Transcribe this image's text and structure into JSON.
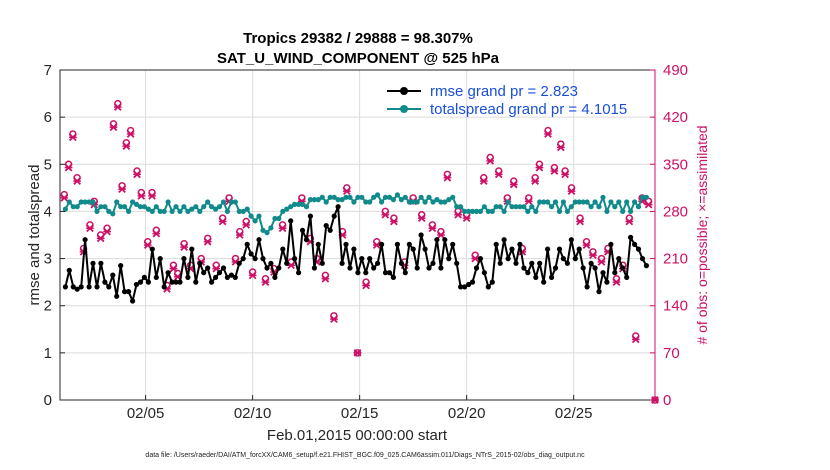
{
  "chart_data": {
    "type": "line",
    "title": "Tropics 29382 / 29888 = 98.307%",
    "subtitle": "SAT_U_WIND_COMPONENT @ 525 hPa",
    "xlabel": "Feb.01,2015 00:00:00 start",
    "ylabel": "rmse and totalspread",
    "ylabel_right": "# of obs: o=possible; ×=assimilated",
    "footnote": "data file: /Users/raeder/DAI/ATM_forcXX/CAM6_setup/f.e21.FHIST_BGC.f09_025.CAM6assim.011/Diags_NTrS_2015-02/obs_diag_output.nc",
    "xlim": [
      1,
      28.8
    ],
    "ylim": [
      0,
      7
    ],
    "ylim_right": [
      0,
      490
    ],
    "x_ticks": [
      5,
      10,
      15,
      20,
      25
    ],
    "x_tick_labels": [
      "02/05",
      "02/10",
      "02/15",
      "02/20",
      "02/25"
    ],
    "y_ticks": [
      "0",
      "1",
      "2",
      "3",
      "4",
      "5",
      "6",
      "7"
    ],
    "y_ticks_right": [
      "0",
      "70",
      "140",
      "210",
      "280",
      "350",
      "420",
      "490"
    ],
    "grid": true,
    "legend_position": "top-right",
    "colors": {
      "rmse": "#000000",
      "spread": "#108a8a",
      "obs": "#cc1166",
      "legend_text": "#1a4fd6"
    },
    "series": [
      {
        "name": "rmse grand pr = 2.823",
        "values": [
          2.4,
          2.75,
          2.4,
          2.35,
          2.4,
          3.4,
          2.4,
          2.9,
          2.4,
          2.9,
          2.5,
          2.4,
          2.65,
          2.2,
          2.85,
          2.3,
          2.3,
          2.1,
          2.45,
          2.5,
          2.6,
          2.5,
          3.2,
          2.6,
          3.0,
          2.4,
          2.7,
          2.5,
          2.5,
          2.5,
          3.0,
          2.6,
          3.2,
          2.5,
          2.9,
          2.7,
          2.8,
          2.5,
          2.6,
          2.7,
          2.8,
          2.6,
          2.65,
          2.6,
          2.9,
          3.0,
          3.3,
          3.1,
          3.0,
          3.4,
          3.0,
          2.8,
          2.9,
          2.6,
          2.8,
          3.2,
          2.9,
          3.8,
          3.0,
          2.7,
          3.6,
          3.4,
          3.9,
          2.8,
          3.3,
          2.9,
          3.7,
          3.6,
          3.9,
          4.1,
          2.9,
          3.3,
          2.8,
          3.2,
          2.7,
          3.0,
          2.7,
          3.0,
          2.8,
          2.9,
          3.3,
          2.7,
          2.7,
          2.6,
          3.3,
          2.9,
          2.7,
          3.3,
          3.2,
          2.8,
          3.5,
          3.2,
          2.8,
          2.9,
          3.4,
          2.8,
          3.4,
          3.0,
          3.3,
          2.9,
          2.4,
          2.4,
          2.45,
          2.5,
          2.8,
          3.0,
          2.7,
          2.4,
          2.5,
          3.3,
          2.9,
          3.4,
          3.0,
          3.2,
          2.9,
          3.3,
          2.8,
          2.7,
          2.9,
          2.6,
          2.9,
          2.5,
          3.2,
          2.6,
          2.8,
          3.2,
          3.0,
          2.9,
          3.4,
          3.0,
          3.2,
          2.8,
          2.4,
          2.9,
          2.8,
          2.3,
          2.7,
          2.5,
          3.3,
          2.7,
          3.0,
          2.8,
          2.6,
          3.45,
          3.3,
          3.2,
          3.0,
          2.85
        ]
      },
      {
        "name": "totalspread grand pr = 4.1015",
        "values": [
          4.05,
          4.2,
          4.1,
          4.1,
          4.2,
          4.2,
          4.2,
          4.2,
          4.0,
          4.1,
          4.1,
          4.0,
          3.95,
          4.2,
          4.1,
          4.1,
          4.0,
          4.2,
          4.15,
          4.1,
          4.1,
          4.05,
          4.0,
          4.1,
          4.0,
          4.0,
          4.2,
          4.0,
          4.1,
          4.0,
          4.1,
          4.0,
          4.05,
          4.1,
          4.0,
          4.1,
          4.2,
          4.1,
          4.05,
          4.1,
          4.2,
          4.0,
          4.2,
          4.2,
          4.0,
          4.0,
          4.05,
          3.9,
          3.8,
          3.9,
          3.6,
          3.55,
          3.65,
          3.85,
          3.85,
          4.0,
          4.05,
          4.1,
          4.15,
          4.15,
          4.15,
          4.1,
          4.25,
          4.25,
          4.25,
          4.3,
          4.2,
          4.3,
          4.3,
          4.25,
          4.25,
          4.3,
          4.3,
          4.2,
          4.3,
          4.3,
          4.2,
          4.2,
          4.3,
          4.35,
          4.2,
          4.3,
          4.3,
          4.25,
          4.35,
          4.25,
          4.3,
          4.2,
          4.2,
          4.2,
          4.3,
          4.2,
          4.3,
          4.2,
          4.25,
          4.2,
          4.2,
          4.25,
          4.3,
          4.1,
          4.1,
          4.0,
          4.0,
          4.0,
          4.0,
          4.0,
          4.1,
          4.0,
          4.0,
          4.1,
          4.1,
          4.0,
          4.2,
          4.1,
          4.1,
          4.1,
          4.1,
          4.0,
          4.1,
          4.0,
          4.2,
          4.2,
          4.2,
          4.1,
          4.2,
          4.0,
          4.2,
          4.0,
          4.1,
          4.2,
          4.2,
          4.2,
          4.2,
          4.1,
          4.2,
          4.1,
          4.3,
          4.0,
          4.2,
          4.1,
          4.2,
          4.0,
          4.2,
          4.0,
          4.2,
          4.1,
          4.3,
          4.3
        ]
      }
    ],
    "obs_possible": [
      {
        "x": 1.2,
        "y": 305
      },
      {
        "x": 1.4,
        "y": 350
      },
      {
        "x": 1.6,
        "y": 395
      },
      {
        "x": 1.8,
        "y": 330
      },
      {
        "x": 2.1,
        "y": 225
      },
      {
        "x": 2.4,
        "y": 260
      },
      {
        "x": 2.6,
        "y": 295
      },
      {
        "x": 2.9,
        "y": 245
      },
      {
        "x": 3.2,
        "y": 255
      },
      {
        "x": 3.5,
        "y": 410
      },
      {
        "x": 3.7,
        "y": 440
      },
      {
        "x": 3.9,
        "y": 318
      },
      {
        "x": 4.1,
        "y": 382
      },
      {
        "x": 4.3,
        "y": 400
      },
      {
        "x": 4.6,
        "y": 340
      },
      {
        "x": 4.8,
        "y": 308
      },
      {
        "x": 5.1,
        "y": 235
      },
      {
        "x": 5.3,
        "y": 308
      },
      {
        "x": 5.5,
        "y": 252
      },
      {
        "x": 6.0,
        "y": 170
      },
      {
        "x": 6.3,
        "y": 200
      },
      {
        "x": 6.5,
        "y": 188
      },
      {
        "x": 6.8,
        "y": 232
      },
      {
        "x": 7.1,
        "y": 200
      },
      {
        "x": 7.6,
        "y": 210
      },
      {
        "x": 7.9,
        "y": 240
      },
      {
        "x": 8.3,
        "y": 200
      },
      {
        "x": 8.6,
        "y": 270
      },
      {
        "x": 8.9,
        "y": 300
      },
      {
        "x": 9.2,
        "y": 210
      },
      {
        "x": 9.4,
        "y": 250
      },
      {
        "x": 9.7,
        "y": 265
      },
      {
        "x": 10.0,
        "y": 190
      },
      {
        "x": 10.6,
        "y": 180
      },
      {
        "x": 11.0,
        "y": 195
      },
      {
        "x": 11.4,
        "y": 260
      },
      {
        "x": 11.8,
        "y": 205
      },
      {
        "x": 12.3,
        "y": 300
      },
      {
        "x": 12.7,
        "y": 240
      },
      {
        "x": 13.0,
        "y": 210
      },
      {
        "x": 13.4,
        "y": 185
      },
      {
        "x": 13.8,
        "y": 125
      },
      {
        "x": 14.2,
        "y": 250
      },
      {
        "x": 14.4,
        "y": 315
      },
      {
        "x": 14.9,
        "y": 70
      },
      {
        "x": 15.3,
        "y": 175
      },
      {
        "x": 15.8,
        "y": 235
      },
      {
        "x": 16.2,
        "y": 280
      },
      {
        "x": 16.6,
        "y": 270
      },
      {
        "x": 17.1,
        "y": 205
      },
      {
        "x": 17.5,
        "y": 300
      },
      {
        "x": 17.9,
        "y": 275
      },
      {
        "x": 18.4,
        "y": 260
      },
      {
        "x": 18.8,
        "y": 250
      },
      {
        "x": 19.1,
        "y": 335
      },
      {
        "x": 19.6,
        "y": 280
      },
      {
        "x": 20.0,
        "y": 275
      },
      {
        "x": 20.4,
        "y": 215
      },
      {
        "x": 20.8,
        "y": 330
      },
      {
        "x": 21.1,
        "y": 360
      },
      {
        "x": 21.5,
        "y": 340
      },
      {
        "x": 21.9,
        "y": 300
      },
      {
        "x": 22.2,
        "y": 325
      },
      {
        "x": 22.6,
        "y": 225
      },
      {
        "x": 22.9,
        "y": 300
      },
      {
        "x": 23.2,
        "y": 330
      },
      {
        "x": 23.4,
        "y": 350
      },
      {
        "x": 23.8,
        "y": 400
      },
      {
        "x": 24.1,
        "y": 345
      },
      {
        "x": 24.4,
        "y": 380
      },
      {
        "x": 24.6,
        "y": 340
      },
      {
        "x": 24.9,
        "y": 315
      },
      {
        "x": 25.3,
        "y": 270
      },
      {
        "x": 25.6,
        "y": 235
      },
      {
        "x": 25.9,
        "y": 220
      },
      {
        "x": 26.3,
        "y": 210
      },
      {
        "x": 26.6,
        "y": 225
      },
      {
        "x": 27.0,
        "y": 180
      },
      {
        "x": 27.3,
        "y": 200
      },
      {
        "x": 27.6,
        "y": 270
      },
      {
        "x": 27.9,
        "y": 95
      },
      {
        "x": 28.2,
        "y": 300
      },
      {
        "x": 28.5,
        "y": 295
      },
      {
        "x": 28.8,
        "y": 0
      }
    ],
    "obs_assimilated": [
      {
        "x": 1.2,
        "y": 300
      },
      {
        "x": 1.4,
        "y": 345
      },
      {
        "x": 1.6,
        "y": 390
      },
      {
        "x": 1.8,
        "y": 325
      },
      {
        "x": 2.1,
        "y": 220
      },
      {
        "x": 2.4,
        "y": 255
      },
      {
        "x": 2.6,
        "y": 290
      },
      {
        "x": 2.9,
        "y": 240
      },
      {
        "x": 3.2,
        "y": 250
      },
      {
        "x": 3.5,
        "y": 405
      },
      {
        "x": 3.7,
        "y": 435
      },
      {
        "x": 3.9,
        "y": 313
      },
      {
        "x": 4.1,
        "y": 377
      },
      {
        "x": 4.3,
        "y": 395
      },
      {
        "x": 4.6,
        "y": 335
      },
      {
        "x": 4.8,
        "y": 303
      },
      {
        "x": 5.1,
        "y": 230
      },
      {
        "x": 5.3,
        "y": 303
      },
      {
        "x": 5.5,
        "y": 247
      },
      {
        "x": 6.0,
        "y": 165
      },
      {
        "x": 6.3,
        "y": 195
      },
      {
        "x": 6.5,
        "y": 183
      },
      {
        "x": 6.8,
        "y": 227
      },
      {
        "x": 7.1,
        "y": 195
      },
      {
        "x": 7.6,
        "y": 205
      },
      {
        "x": 7.9,
        "y": 235
      },
      {
        "x": 8.3,
        "y": 195
      },
      {
        "x": 8.6,
        "y": 265
      },
      {
        "x": 8.9,
        "y": 295
      },
      {
        "x": 9.2,
        "y": 205
      },
      {
        "x": 9.4,
        "y": 245
      },
      {
        "x": 9.7,
        "y": 260
      },
      {
        "x": 10.0,
        "y": 185
      },
      {
        "x": 10.6,
        "y": 175
      },
      {
        "x": 11.0,
        "y": 190
      },
      {
        "x": 11.4,
        "y": 255
      },
      {
        "x": 11.8,
        "y": 200
      },
      {
        "x": 12.3,
        "y": 295
      },
      {
        "x": 12.7,
        "y": 235
      },
      {
        "x": 13.0,
        "y": 205
      },
      {
        "x": 13.4,
        "y": 180
      },
      {
        "x": 13.8,
        "y": 120
      },
      {
        "x": 14.2,
        "y": 245
      },
      {
        "x": 14.4,
        "y": 310
      },
      {
        "x": 14.9,
        "y": 70
      },
      {
        "x": 15.3,
        "y": 170
      },
      {
        "x": 15.8,
        "y": 230
      },
      {
        "x": 16.2,
        "y": 275
      },
      {
        "x": 16.6,
        "y": 265
      },
      {
        "x": 17.1,
        "y": 200
      },
      {
        "x": 17.5,
        "y": 295
      },
      {
        "x": 17.9,
        "y": 270
      },
      {
        "x": 18.4,
        "y": 255
      },
      {
        "x": 18.8,
        "y": 245
      },
      {
        "x": 19.1,
        "y": 330
      },
      {
        "x": 19.6,
        "y": 275
      },
      {
        "x": 20.0,
        "y": 270
      },
      {
        "x": 20.4,
        "y": 210
      },
      {
        "x": 20.8,
        "y": 325
      },
      {
        "x": 21.1,
        "y": 355
      },
      {
        "x": 21.5,
        "y": 335
      },
      {
        "x": 21.9,
        "y": 295
      },
      {
        "x": 22.2,
        "y": 320
      },
      {
        "x": 22.6,
        "y": 220
      },
      {
        "x": 22.9,
        "y": 295
      },
      {
        "x": 23.2,
        "y": 325
      },
      {
        "x": 23.4,
        "y": 345
      },
      {
        "x": 23.8,
        "y": 395
      },
      {
        "x": 24.1,
        "y": 340
      },
      {
        "x": 24.4,
        "y": 375
      },
      {
        "x": 24.6,
        "y": 335
      },
      {
        "x": 24.9,
        "y": 310
      },
      {
        "x": 25.3,
        "y": 265
      },
      {
        "x": 25.6,
        "y": 230
      },
      {
        "x": 25.9,
        "y": 215
      },
      {
        "x": 26.3,
        "y": 205
      },
      {
        "x": 26.6,
        "y": 220
      },
      {
        "x": 27.0,
        "y": 175
      },
      {
        "x": 27.3,
        "y": 195
      },
      {
        "x": 27.6,
        "y": 265
      },
      {
        "x": 27.9,
        "y": 90
      },
      {
        "x": 28.2,
        "y": 295
      },
      {
        "x": 28.5,
        "y": 290
      },
      {
        "x": 28.8,
        "y": 0
      }
    ]
  }
}
